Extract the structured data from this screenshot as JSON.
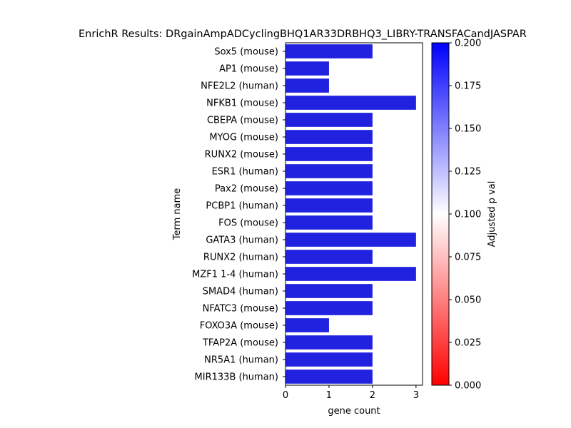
{
  "chart_data": {
    "type": "bar",
    "orientation": "horizontal",
    "title": "EnrichR Results: DRgainAmpADCyclingBHQ1AR33DRBHQ3_LIBRY-TRANSFACandJASPAR",
    "xlabel": "gene count",
    "ylabel": "Term name",
    "categories": [
      "Sox5 (mouse)",
      "AP1 (mouse)",
      "NFE2L2 (human)",
      "NFKB1 (mouse)",
      "CBEPA (mouse)",
      "MYOG (mouse)",
      "RUNX2 (mouse)",
      "ESR1 (human)",
      "Pax2 (mouse)",
      "PCBP1 (human)",
      "FOS (mouse)",
      "GATA3 (human)",
      "RUNX2 (human)",
      "MZF1 1-4 (human)",
      "SMAD4 (human)",
      "NFATC3 (mouse)",
      "FOXO3A (mouse)",
      "TFAP2A (mouse)",
      "NR5A1 (human)",
      "MIR133B (human)"
    ],
    "values": [
      2,
      1,
      1,
      3,
      2,
      2,
      2,
      2,
      2,
      2,
      2,
      3,
      2,
      3,
      2,
      2,
      1,
      2,
      2,
      2
    ],
    "bar_color": "#2121e0",
    "xlim": [
      0,
      3.15
    ],
    "xticks": [
      "0",
      "1",
      "2",
      "3"
    ],
    "grid": false,
    "colorbar": {
      "label": "Adjusted p val",
      "range": [
        0,
        0.2
      ],
      "ticks": [
        "0.000",
        "0.025",
        "0.050",
        "0.075",
        "0.100",
        "0.125",
        "0.150",
        "0.175",
        "0.200"
      ],
      "colors": [
        "#ff0000",
        "#ffffff",
        "#0000ff"
      ]
    }
  }
}
